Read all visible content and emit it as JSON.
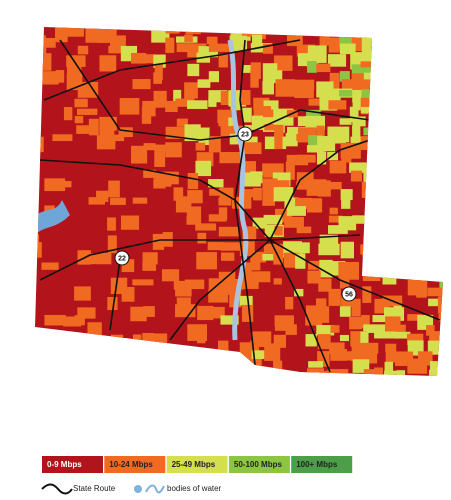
{
  "legend": {
    "items": [
      {
        "label": "0-9 Mbps",
        "color": "#b3141c"
      },
      {
        "label": "10-24 Mbps",
        "color": "#f06a22"
      },
      {
        "label": "25-49 Mbps",
        "color": "#d5de4c"
      },
      {
        "label": "50-100 Mbps",
        "color": "#8cc541"
      },
      {
        "label": "100+ Mbps",
        "color": "#4c9f48"
      }
    ],
    "state_route": "State Route",
    "water": "bodies of water"
  },
  "routes": [
    {
      "label": "23"
    },
    {
      "label": "22"
    },
    {
      "label": "56"
    }
  ]
}
